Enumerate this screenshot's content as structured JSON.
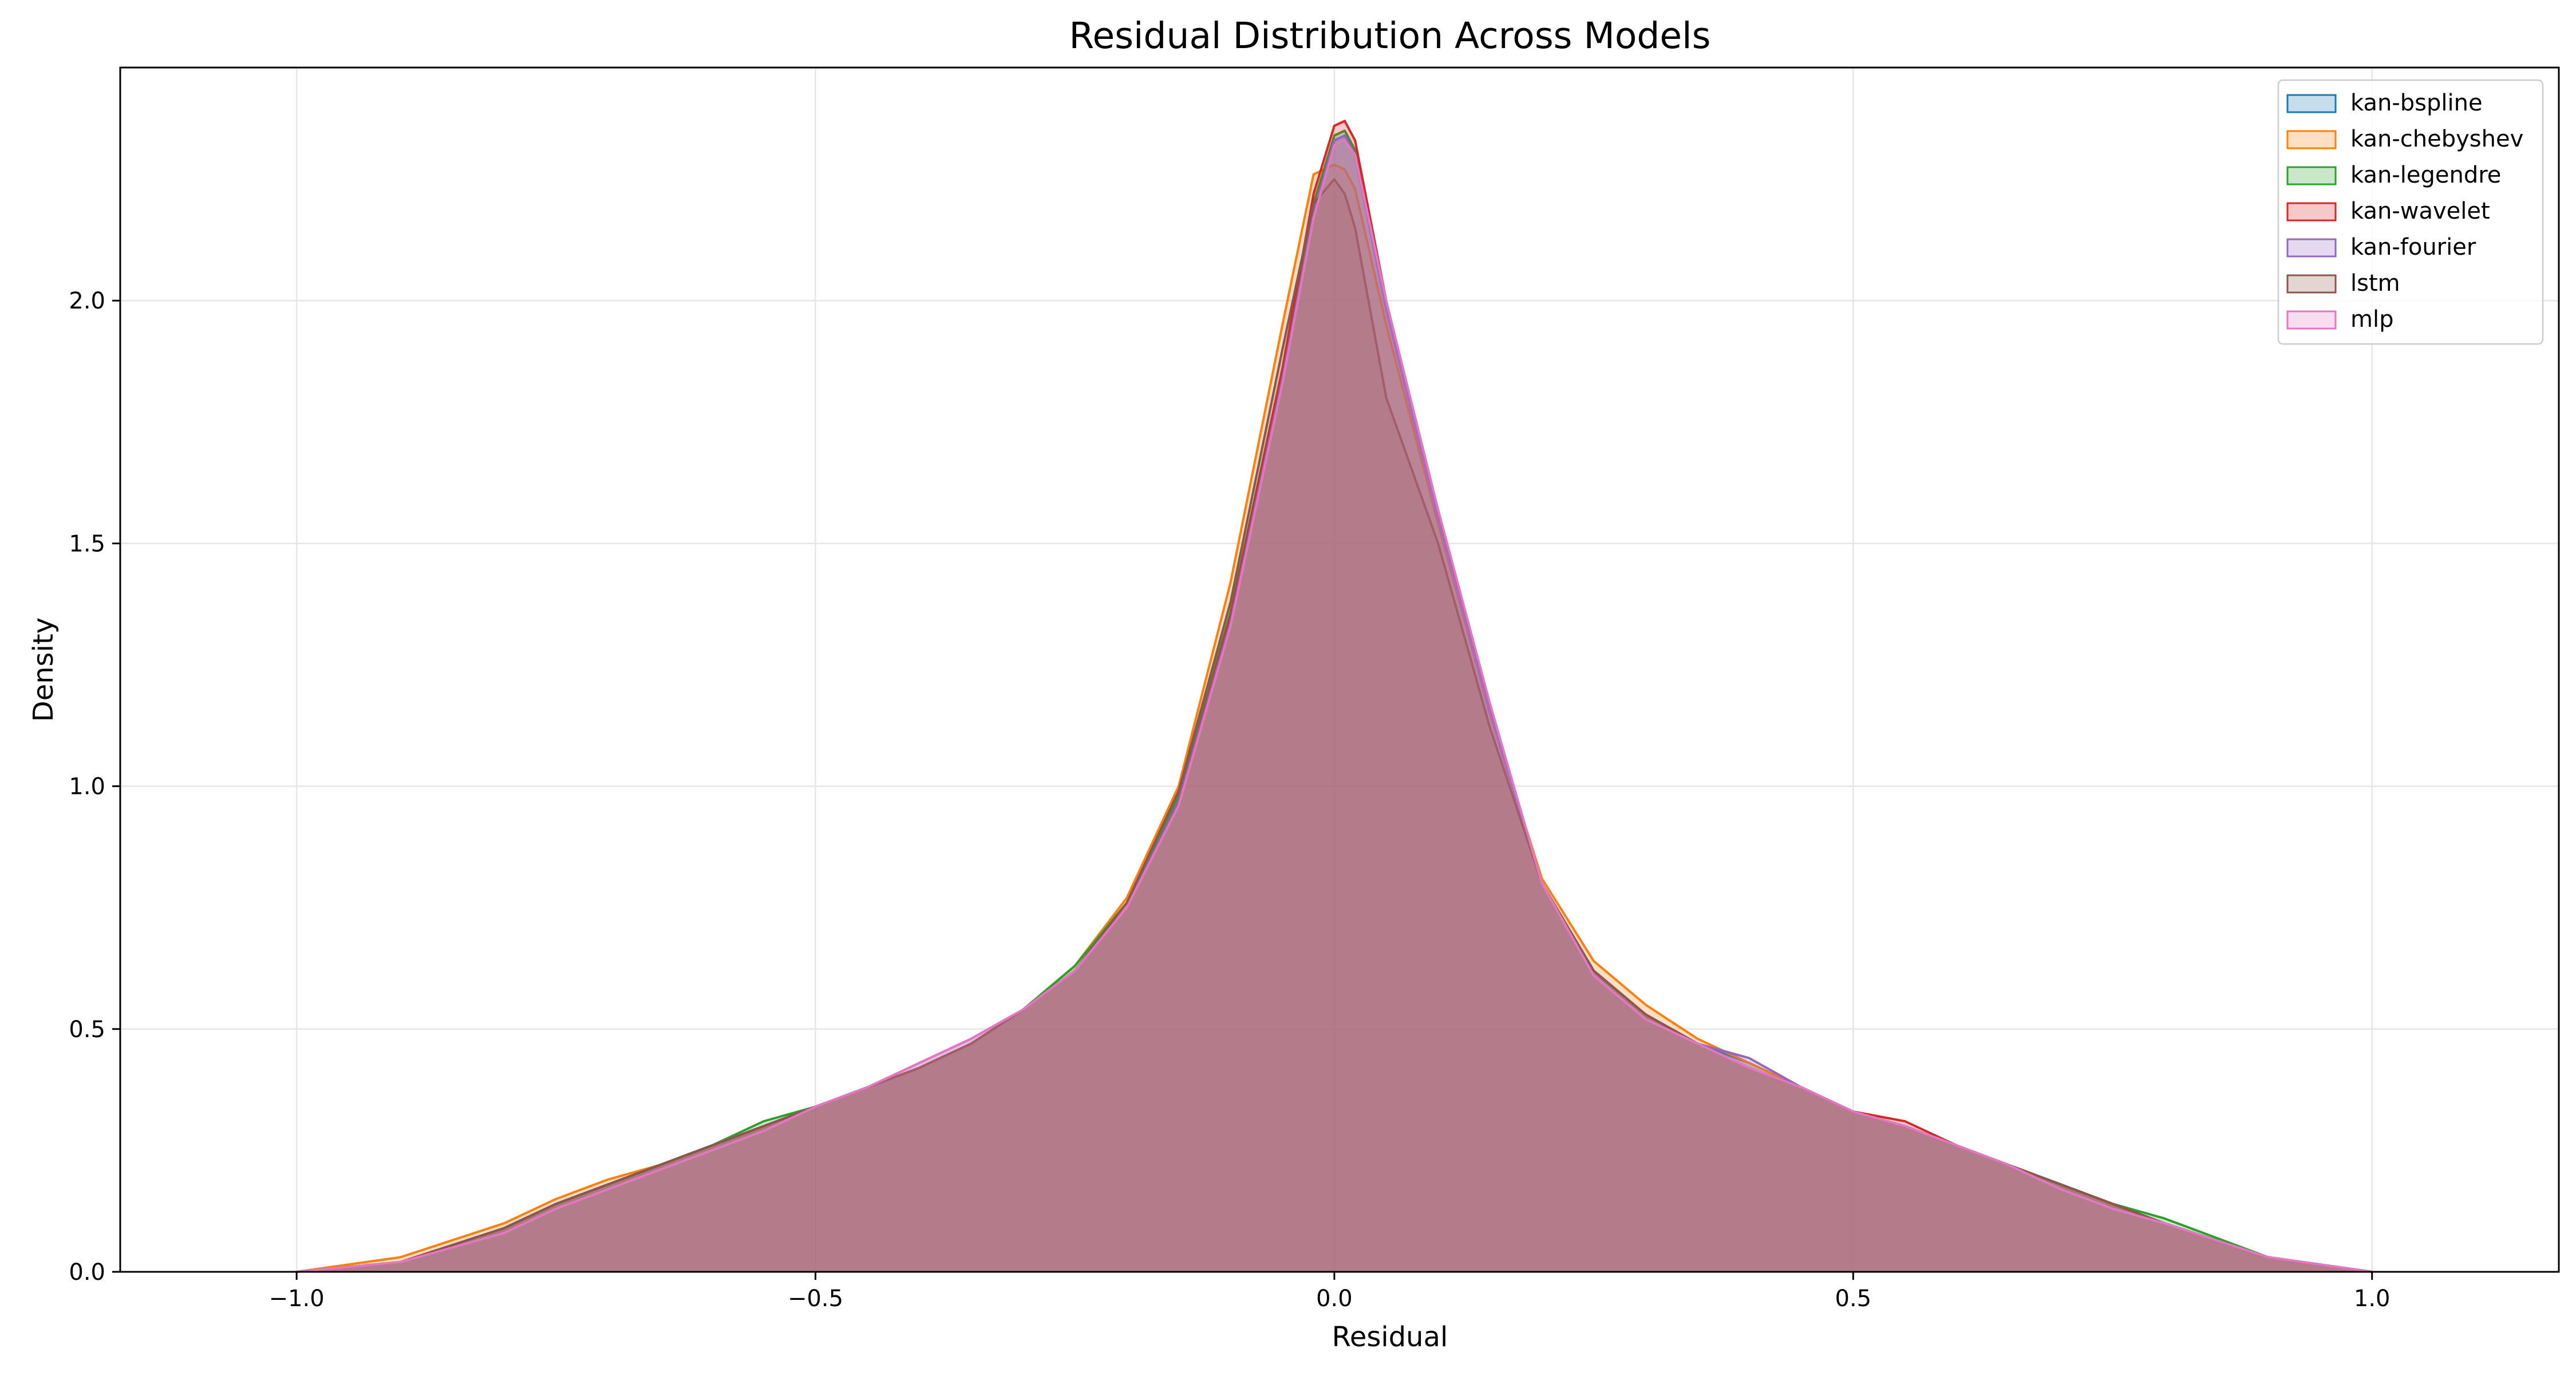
{
  "chart_data": {
    "type": "area",
    "title": "Residual Distribution Across Models",
    "xlabel": "Residual",
    "ylabel": "Density",
    "xlim": [
      -1.17,
      1.18
    ],
    "ylim": [
      0,
      2.48
    ],
    "xticks": [
      -1.0,
      -0.5,
      0.0,
      0.5,
      1.0
    ],
    "xtick_labels": [
      "−1.0",
      "−0.5",
      "0.0",
      "0.5",
      "1.0"
    ],
    "yticks": [
      0.0,
      0.5,
      1.0,
      1.5,
      2.0
    ],
    "ytick_labels": [
      "0.0",
      "0.5",
      "1.0",
      "1.5",
      "2.0"
    ],
    "grid": true,
    "legend_position": "top-right",
    "fill_opacity": 0.25,
    "x": [
      -1.0,
      -0.9,
      -0.8,
      -0.75,
      -0.7,
      -0.65,
      -0.6,
      -0.55,
      -0.5,
      -0.45,
      -0.4,
      -0.35,
      -0.3,
      -0.25,
      -0.2,
      -0.15,
      -0.1,
      -0.05,
      -0.02,
      0.0,
      0.01,
      0.02,
      0.05,
      0.1,
      0.15,
      0.2,
      0.25,
      0.3,
      0.35,
      0.4,
      0.45,
      0.5,
      0.55,
      0.6,
      0.65,
      0.7,
      0.75,
      0.8,
      0.9,
      1.0
    ],
    "series": [
      {
        "name": "kan-bspline",
        "color": "#1f77b4",
        "values": [
          0.0,
          0.02,
          0.09,
          0.14,
          0.18,
          0.22,
          0.26,
          0.3,
          0.34,
          0.38,
          0.42,
          0.47,
          0.54,
          0.62,
          0.75,
          0.97,
          1.35,
          1.85,
          2.18,
          2.33,
          2.34,
          2.3,
          1.98,
          1.55,
          1.15,
          0.8,
          0.62,
          0.53,
          0.47,
          0.43,
          0.38,
          0.33,
          0.3,
          0.26,
          0.22,
          0.18,
          0.14,
          0.1,
          0.03,
          0.0
        ]
      },
      {
        "name": "kan-chebyshev",
        "color": "#ff7f0e",
        "values": [
          0.0,
          0.03,
          0.1,
          0.15,
          0.19,
          0.22,
          0.26,
          0.3,
          0.34,
          0.38,
          0.42,
          0.47,
          0.54,
          0.63,
          0.77,
          1.0,
          1.42,
          1.95,
          2.26,
          2.28,
          2.27,
          2.23,
          1.95,
          1.54,
          1.15,
          0.81,
          0.64,
          0.55,
          0.48,
          0.43,
          0.38,
          0.33,
          0.3,
          0.26,
          0.22,
          0.18,
          0.14,
          0.1,
          0.03,
          0.0
        ]
      },
      {
        "name": "kan-legendre",
        "color": "#2ca02c",
        "values": [
          0.0,
          0.02,
          0.09,
          0.14,
          0.18,
          0.22,
          0.26,
          0.31,
          0.34,
          0.38,
          0.42,
          0.47,
          0.54,
          0.63,
          0.76,
          0.98,
          1.36,
          1.86,
          2.2,
          2.34,
          2.35,
          2.31,
          1.99,
          1.56,
          1.16,
          0.8,
          0.62,
          0.53,
          0.47,
          0.42,
          0.38,
          0.33,
          0.3,
          0.26,
          0.22,
          0.18,
          0.14,
          0.11,
          0.03,
          0.0
        ]
      },
      {
        "name": "kan-wavelet",
        "color": "#d62728",
        "values": [
          0.0,
          0.02,
          0.09,
          0.14,
          0.18,
          0.22,
          0.26,
          0.3,
          0.34,
          0.38,
          0.42,
          0.47,
          0.54,
          0.62,
          0.75,
          0.97,
          1.35,
          1.86,
          2.22,
          2.36,
          2.37,
          2.33,
          2.0,
          1.56,
          1.16,
          0.8,
          0.62,
          0.53,
          0.47,
          0.42,
          0.38,
          0.33,
          0.31,
          0.26,
          0.22,
          0.18,
          0.14,
          0.1,
          0.03,
          0.0
        ]
      },
      {
        "name": "kan-fourier",
        "color": "#9467bd",
        "values": [
          0.0,
          0.02,
          0.09,
          0.14,
          0.18,
          0.22,
          0.26,
          0.3,
          0.34,
          0.38,
          0.43,
          0.48,
          0.54,
          0.62,
          0.75,
          0.97,
          1.34,
          1.84,
          2.18,
          2.33,
          2.34,
          2.3,
          1.98,
          1.55,
          1.15,
          0.8,
          0.62,
          0.53,
          0.47,
          0.44,
          0.38,
          0.33,
          0.3,
          0.26,
          0.22,
          0.18,
          0.14,
          0.1,
          0.03,
          0.0
        ]
      },
      {
        "name": "lstm",
        "color": "#8c564b",
        "values": [
          0.0,
          0.02,
          0.09,
          0.14,
          0.18,
          0.22,
          0.26,
          0.3,
          0.34,
          0.38,
          0.42,
          0.47,
          0.54,
          0.62,
          0.76,
          0.99,
          1.38,
          1.9,
          2.2,
          2.25,
          2.22,
          2.15,
          1.8,
          1.5,
          1.12,
          0.8,
          0.62,
          0.53,
          0.47,
          0.42,
          0.38,
          0.33,
          0.3,
          0.26,
          0.22,
          0.18,
          0.14,
          0.1,
          0.03,
          0.0
        ]
      },
      {
        "name": "mlp",
        "color": "#e377c2",
        "values": [
          0.0,
          0.02,
          0.08,
          0.13,
          0.17,
          0.21,
          0.25,
          0.29,
          0.34,
          0.38,
          0.43,
          0.48,
          0.54,
          0.62,
          0.75,
          0.96,
          1.33,
          1.83,
          2.17,
          2.32,
          2.33,
          2.3,
          2.0,
          1.57,
          1.17,
          0.8,
          0.61,
          0.52,
          0.47,
          0.42,
          0.38,
          0.33,
          0.3,
          0.26,
          0.22,
          0.17,
          0.13,
          0.1,
          0.03,
          0.0
        ]
      }
    ]
  }
}
